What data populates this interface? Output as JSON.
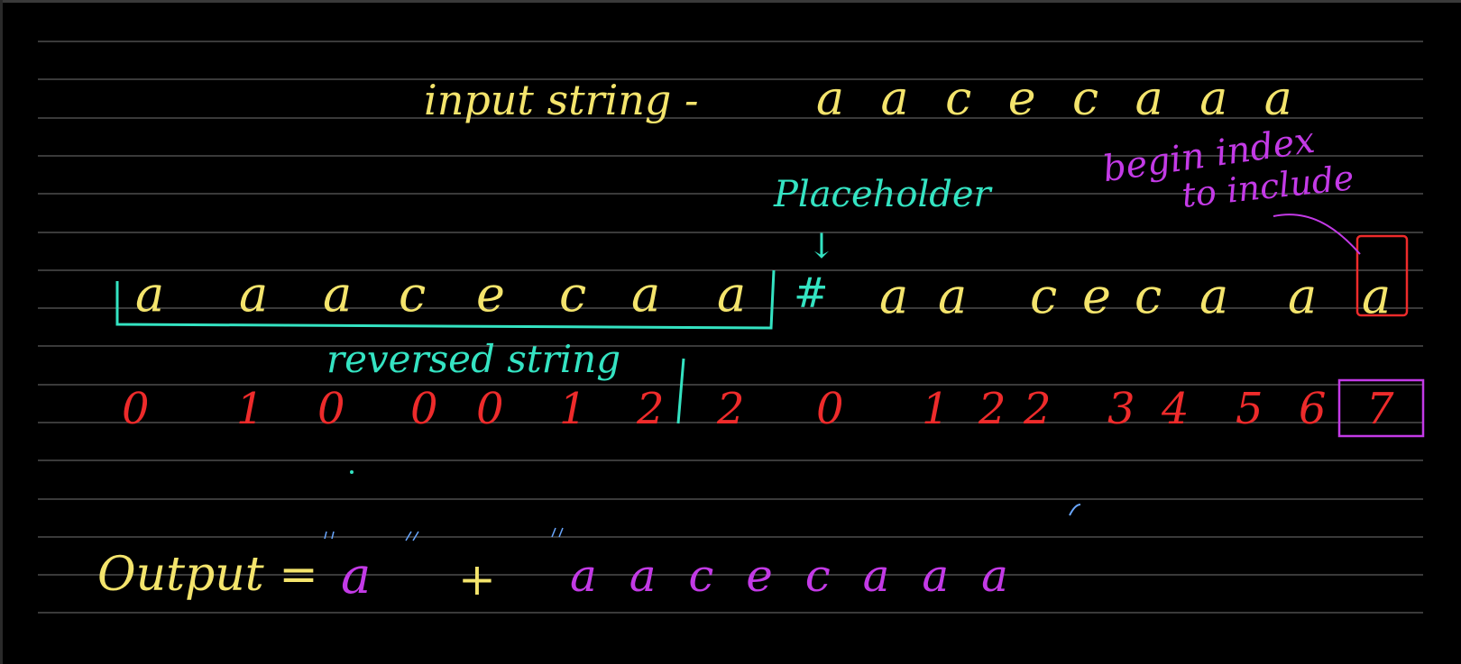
{
  "colors": {
    "background": "#000000",
    "rule": "#4d4d4d",
    "yellow": "#f4e46c",
    "teal": "#34e3c2",
    "magenta": "#c33ae6",
    "red": "#ee2b2b"
  },
  "notes": {
    "input_label": "input string -",
    "input_value": "a a c e c a a a",
    "placeholder_label": "Placeholder",
    "placeholder_arrow": "↓",
    "begin_index_label": "begin index",
    "to_include_label": "to include",
    "reversed_letters": [
      "a",
      "a",
      "a",
      "c",
      "e",
      "c",
      "a",
      "a"
    ],
    "hash": "#",
    "original_letters": [
      "a",
      "a",
      "c",
      "e",
      "c",
      "a",
      "a",
      "a"
    ],
    "reversed_label": "reversed string",
    "lps_values": [
      "0",
      "1",
      "0",
      "0",
      "0",
      "1",
      "2",
      "2",
      "0",
      "1",
      "2",
      "2",
      "3",
      "4",
      "5",
      "6",
      "7"
    ],
    "output_label": "Output =",
    "output_prefix": "a",
    "output_plus": "+",
    "output_suffix": "a a c e c a a a"
  }
}
